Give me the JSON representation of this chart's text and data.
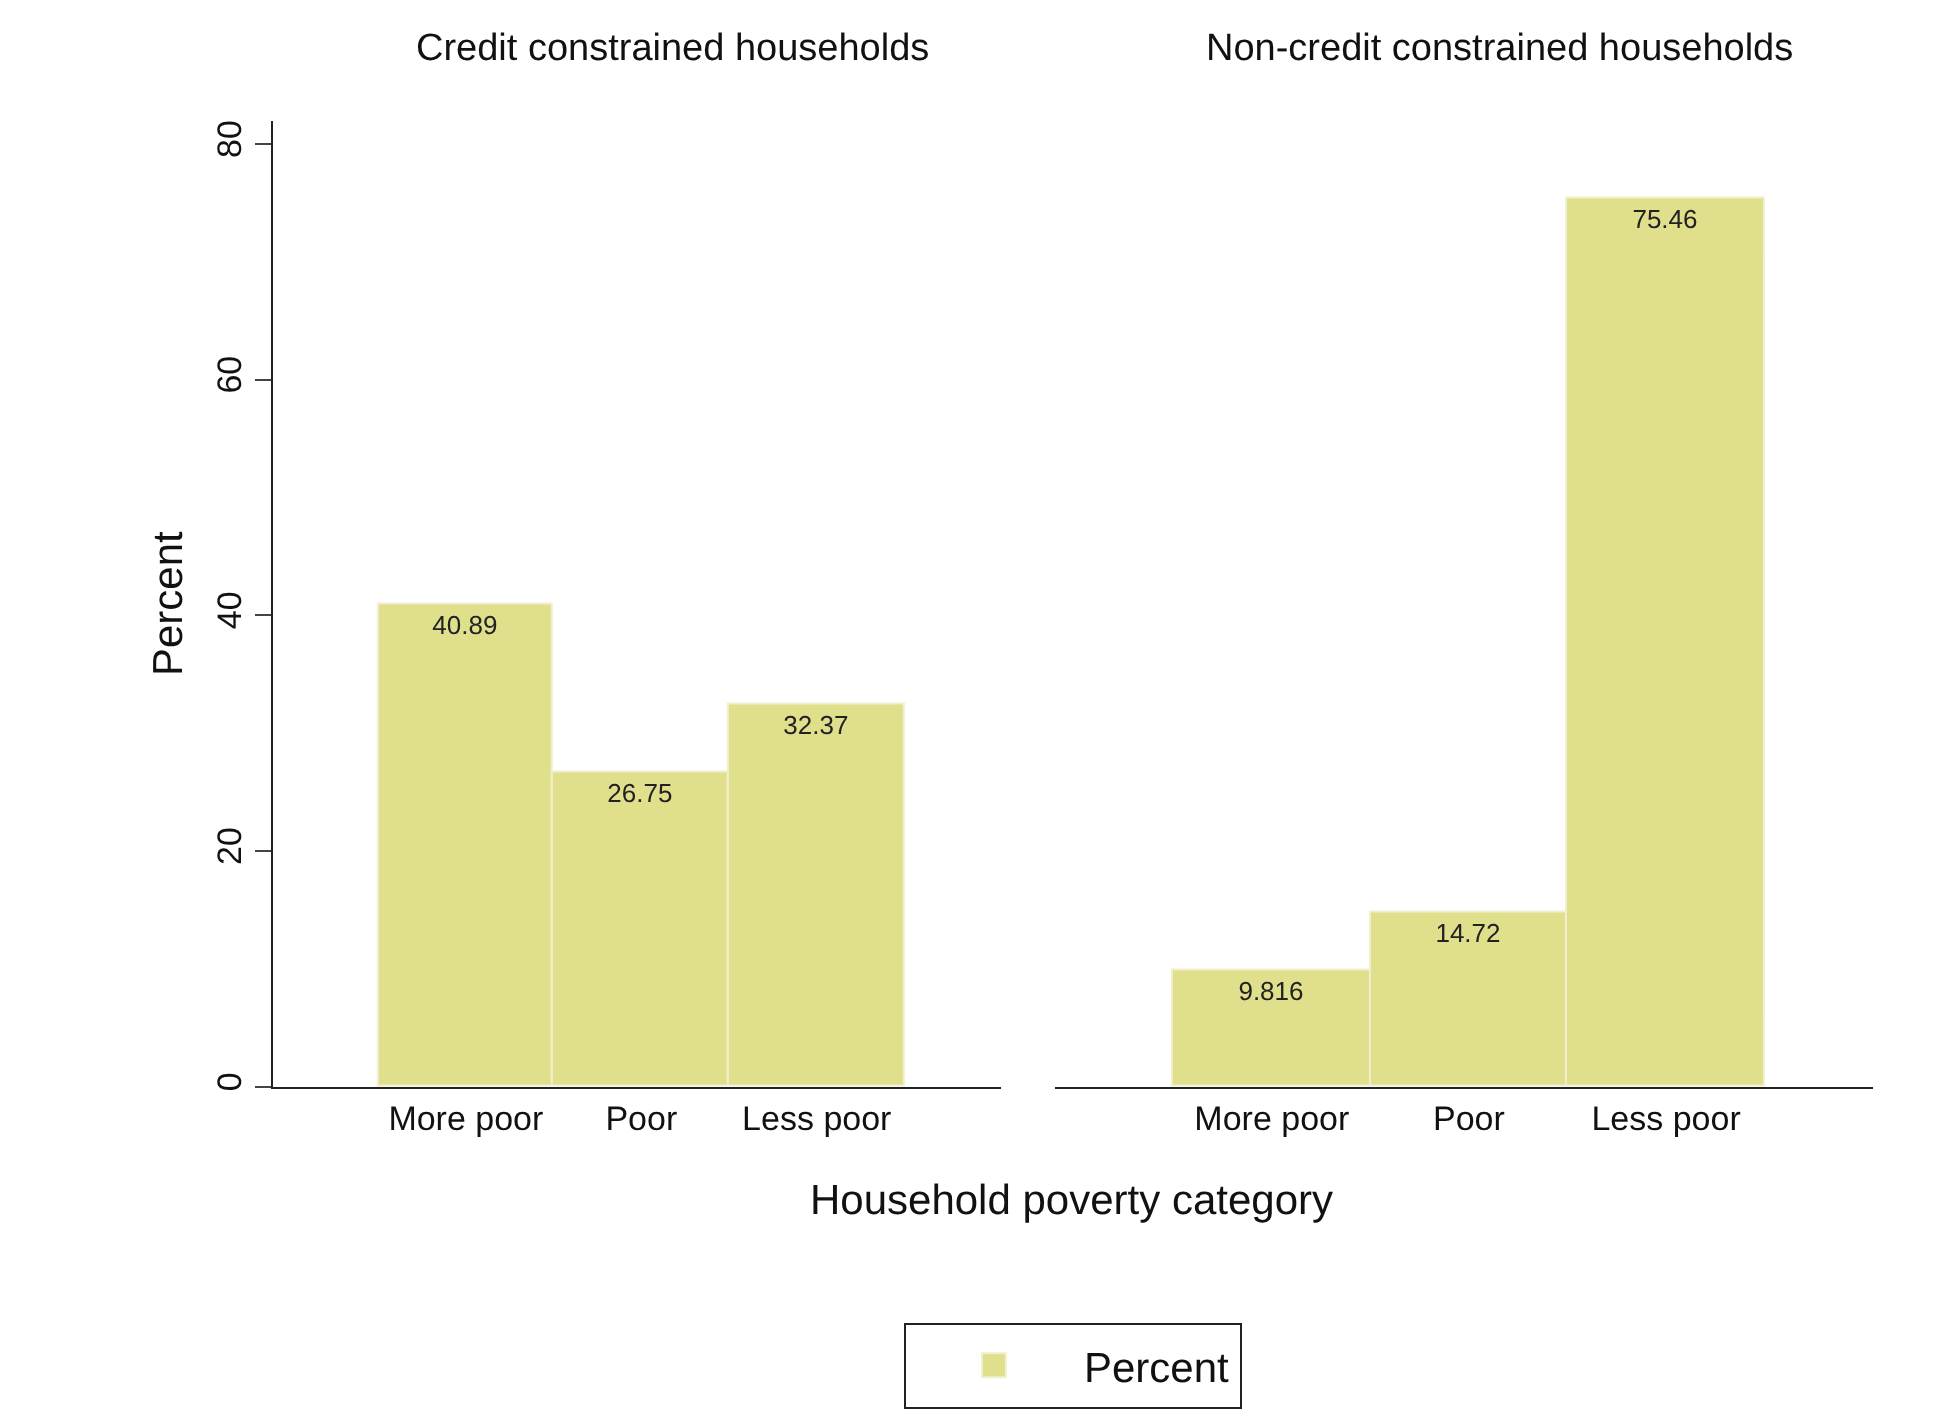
{
  "chart_data": [
    {
      "type": "bar",
      "title": "Credit constrained households",
      "ylabel": "Percent",
      "xlabel": "Household poverty category",
      "categories": [
        "More poor",
        "Poor",
        "Less poor"
      ],
      "series": [
        {
          "name": "Percent",
          "color": "#e0df8c",
          "values": [
            40.89,
            26.75,
            32.37
          ]
        }
      ],
      "ylim": [
        0,
        82
      ],
      "yticks": [
        0,
        20,
        40,
        60,
        80
      ],
      "data_labels": true,
      "legend": "bottom"
    },
    {
      "type": "bar",
      "title": "Non-credit constrained households",
      "categories": [
        "More poor",
        "Poor",
        "Less poor"
      ],
      "series": [
        {
          "color": "#e0df8c",
          "values": [
            9.816,
            14.72,
            75.46
          ]
        }
      ],
      "data_labels": true,
      "tick_labels": "x"
    }
  ]
}
